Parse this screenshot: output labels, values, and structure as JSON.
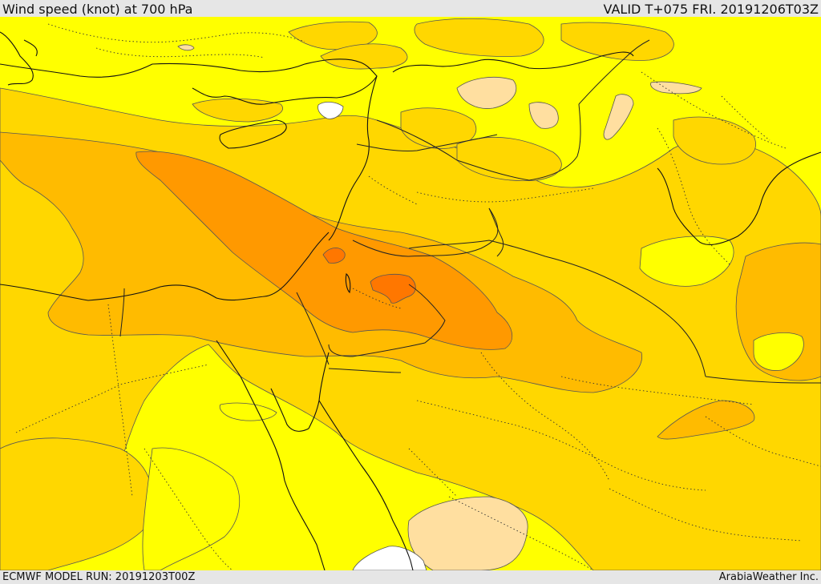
{
  "header": {
    "title": "Wind speed (knot) at 700 hPa",
    "valid": "VALID T+075 FRI. 20191206T03Z"
  },
  "footer": {
    "model_run": "ECMWF MODEL RUN: 20191203T00Z",
    "credit": "ArabiaWeather Inc."
  },
  "map": {
    "colors": {
      "calm_white": "#ffffff",
      "light_peach": "#ffdfa0",
      "yellow": "#ffff00",
      "gold": "#ffd700",
      "amber": "#ffbb00",
      "orange": "#ff9900",
      "dark_orange": "#ff7700",
      "sea_red_white": "#ffffff"
    }
  }
}
